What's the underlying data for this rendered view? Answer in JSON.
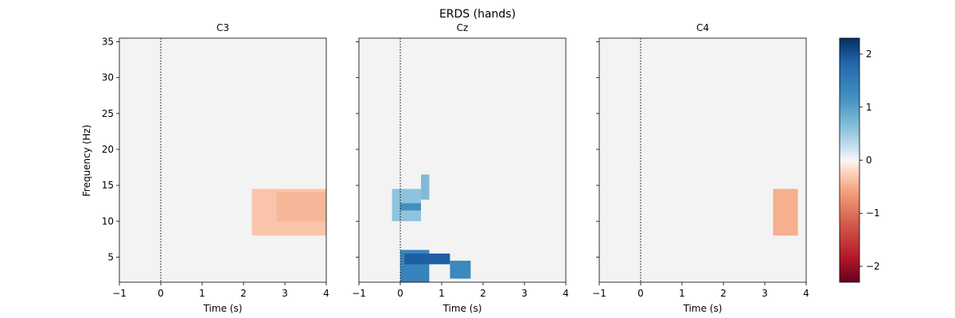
{
  "chart_data": {
    "type": "heatmap",
    "title": "ERDS (hands)",
    "xlabel": "Time (s)",
    "ylabel": "Frequency (Hz)",
    "xlim": [
      -1,
      4
    ],
    "ylim": [
      1.5,
      35.5
    ],
    "xticks": [
      -1,
      0,
      1,
      2,
      3,
      4
    ],
    "yticks": [
      5,
      10,
      15,
      20,
      25,
      30,
      35
    ],
    "colormap": "RdBu",
    "vmin": -2.3,
    "vmax": 2.3,
    "colorbar_ticks": [
      -2,
      -1,
      0,
      1,
      2
    ],
    "onset_marker_time": 0,
    "panels": [
      {
        "name": "C3",
        "clusters": [
          {
            "t0": 2.2,
            "t1": 4.0,
            "f0": 8.0,
            "f1": 14.5,
            "value": -0.35
          },
          {
            "t0": 2.8,
            "t1": 4.0,
            "f0": 10.0,
            "f1": 14.0,
            "value": -0.45
          }
        ]
      },
      {
        "name": "Cz",
        "clusters": [
          {
            "t0": 0.0,
            "t1": 0.7,
            "f0": 1.5,
            "f1": 6.0,
            "value": 1.4
          },
          {
            "t0": 0.1,
            "t1": 1.2,
            "f0": 4.0,
            "f1": 5.5,
            "value": 1.9
          },
          {
            "t0": 1.2,
            "t1": 1.7,
            "f0": 2.0,
            "f1": 4.5,
            "value": 1.3
          },
          {
            "t0": -0.2,
            "t1": 0.5,
            "f0": 10.0,
            "f1": 14.5,
            "value": 0.6
          },
          {
            "t0": 0.0,
            "t1": 0.5,
            "f0": 11.5,
            "f1": 12.5,
            "value": 1.2
          },
          {
            "t0": 0.5,
            "t1": 0.7,
            "f0": 13.0,
            "f1": 16.5,
            "value": 0.7
          }
        ]
      },
      {
        "name": "C4",
        "clusters": [
          {
            "t0": 3.2,
            "t1": 3.8,
            "f0": 8.0,
            "f1": 14.5,
            "value": -0.5
          }
        ]
      }
    ]
  }
}
